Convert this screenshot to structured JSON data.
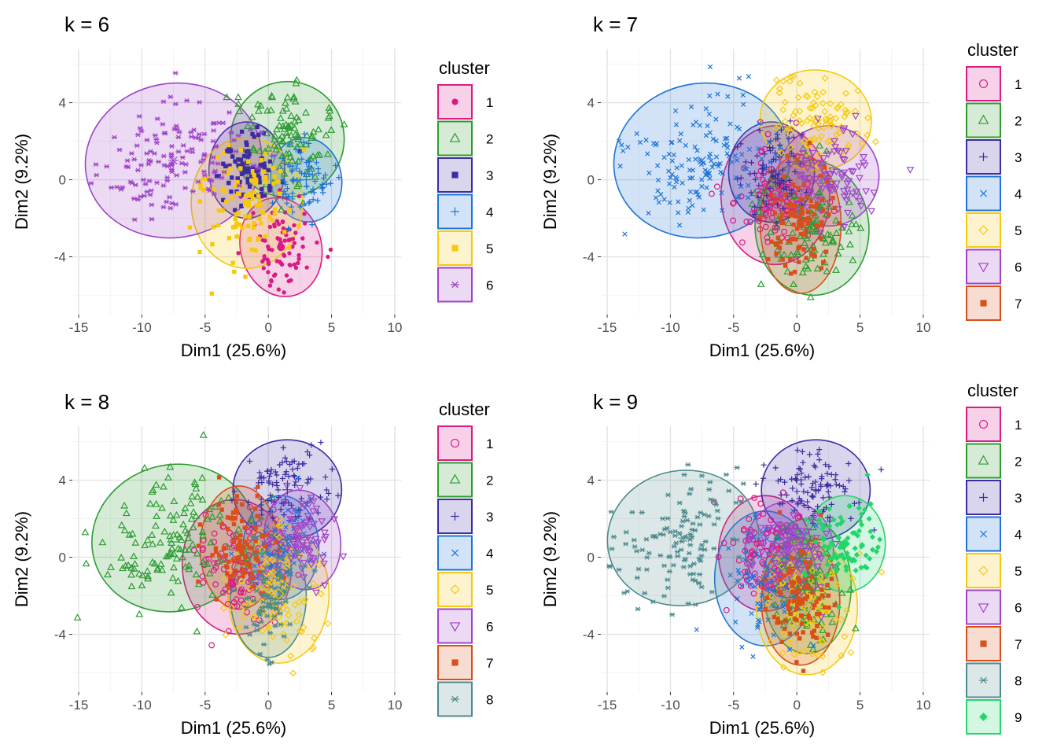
{
  "colors": {
    "1": "#D81B85",
    "2": "#2E9B32",
    "3": "#3D2CA0",
    "4": "#1E74D6",
    "5": "#F7C90E",
    "6": "#9E44C8",
    "7": "#D94E1B",
    "8": "#4E8A8E",
    "9": "#22D66C"
  },
  "chart_data": [
    {
      "type": "scatter",
      "title": "k = 6",
      "xlabel": "Dim1 (25.6%)",
      "ylabel": "Dim2 (9.2%)",
      "xlim": [
        -15.5,
        10.5
      ],
      "ylim": [
        -7,
        6.8
      ],
      "xticks": [
        -15,
        -10,
        -5,
        0,
        5,
        10
      ],
      "yticks": [
        -4,
        0,
        4
      ],
      "grid": true,
      "legend": {
        "title": "cluster",
        "position": "right",
        "labels": [
          "1",
          "2",
          "3",
          "4",
          "5",
          "6"
        ]
      },
      "clusters": [
        {
          "name": "1",
          "center": [
            1.0,
            -3.5
          ],
          "radii": [
            3.2,
            2.6
          ],
          "angle": 15,
          "shape": "dot"
        },
        {
          "name": "2",
          "center": [
            1.5,
            2.1
          ],
          "radii": [
            4.5,
            3.0
          ],
          "angle": -10,
          "shape": "triangle"
        },
        {
          "name": "3",
          "center": [
            -1.7,
            0.5
          ],
          "radii": [
            3.0,
            2.5
          ],
          "angle": 0,
          "shape": "square"
        },
        {
          "name": "4",
          "center": [
            3.0,
            0.0
          ],
          "radii": [
            2.8,
            2.2
          ],
          "angle": 10,
          "shape": "plus"
        },
        {
          "name": "5",
          "center": [
            -1.7,
            -1.2
          ],
          "radii": [
            4.4,
            3.4
          ],
          "angle": 0,
          "shape": "square"
        },
        {
          "name": "6",
          "center": [
            -7.5,
            1.0
          ],
          "radii": [
            7.0,
            4.0
          ],
          "angle": 10,
          "shape": "asterisk"
        }
      ]
    },
    {
      "type": "scatter",
      "title": "k = 7",
      "xlabel": "Dim1 (25.6%)",
      "ylabel": "Dim2 (9.2%)",
      "xlim": [
        -15.5,
        10.5
      ],
      "ylim": [
        -7,
        6.8
      ],
      "xticks": [
        -15,
        -10,
        -5,
        0,
        5,
        10
      ],
      "yticks": [
        -4,
        0,
        4
      ],
      "grid": true,
      "legend": {
        "title": "cluster",
        "position": "right",
        "labels": [
          "1",
          "2",
          "3",
          "4",
          "5",
          "6",
          "7"
        ]
      },
      "clusters": [
        {
          "name": "1",
          "center": [
            -1.7,
            -0.8
          ],
          "radii": [
            4.3,
            3.6
          ],
          "angle": 0,
          "shape": "circle"
        },
        {
          "name": "2",
          "center": [
            1.2,
            -2.5
          ],
          "radii": [
            4.5,
            3.5
          ],
          "angle": 5,
          "shape": "triangle"
        },
        {
          "name": "3",
          "center": [
            -2.0,
            0.4
          ],
          "radii": [
            3.4,
            2.6
          ],
          "angle": 0,
          "shape": "plus"
        },
        {
          "name": "4",
          "center": [
            -7.5,
            1.0
          ],
          "radii": [
            7.0,
            4.0
          ],
          "angle": 10,
          "shape": "cross"
        },
        {
          "name": "5",
          "center": [
            1.5,
            3.1
          ],
          "radii": [
            4.4,
            2.6
          ],
          "angle": -5,
          "shape": "diamond"
        },
        {
          "name": "6",
          "center": [
            2.5,
            0.2
          ],
          "radii": [
            4.0,
            2.6
          ],
          "angle": 5,
          "shape": "tridown"
        },
        {
          "name": "7",
          "center": [
            0.3,
            -2.3
          ],
          "radii": [
            3.2,
            3.6
          ],
          "angle": 0,
          "shape": "square"
        }
      ]
    },
    {
      "type": "scatter",
      "title": "k = 8",
      "xlabel": "Dim1 (25.6%)",
      "ylabel": "Dim2 (9.2%)",
      "xlim": [
        -15.5,
        10.5
      ],
      "ylim": [
        -7,
        6.8
      ],
      "xticks": [
        -15,
        -10,
        -5,
        0,
        5,
        10
      ],
      "yticks": [
        -4,
        0,
        4
      ],
      "grid": true,
      "legend": {
        "title": "cluster",
        "position": "right",
        "labels": [
          "1",
          "2",
          "3",
          "4",
          "5",
          "6",
          "7",
          "8"
        ]
      },
      "clusters": [
        {
          "name": "1",
          "center": [
            -2.5,
            -0.5
          ],
          "radii": [
            4.3,
            3.5
          ],
          "angle": 5,
          "shape": "circle"
        },
        {
          "name": "2",
          "center": [
            -7.5,
            1.0
          ],
          "radii": [
            6.5,
            3.8
          ],
          "angle": 15,
          "shape": "triangle"
        },
        {
          "name": "3",
          "center": [
            1.5,
            3.5
          ],
          "radii": [
            4.3,
            2.6
          ],
          "angle": 0,
          "shape": "plus"
        },
        {
          "name": "4",
          "center": [
            1.0,
            0.5
          ],
          "radii": [
            3.0,
            2.7
          ],
          "angle": 0,
          "shape": "cross"
        },
        {
          "name": "5",
          "center": [
            0.8,
            -1.9
          ],
          "radii": [
            4.0,
            3.6
          ],
          "angle": 0,
          "shape": "diamond"
        },
        {
          "name": "6",
          "center": [
            2.7,
            0.9
          ],
          "radii": [
            3.0,
            2.6
          ],
          "angle": 10,
          "shape": "tridown"
        },
        {
          "name": "7",
          "center": [
            -2.3,
            0.5
          ],
          "radii": [
            3.1,
            3.2
          ],
          "angle": 0,
          "shape": "square"
        },
        {
          "name": "8",
          "center": [
            0.0,
            -2.0
          ],
          "radii": [
            3.0,
            3.2
          ],
          "angle": 0,
          "shape": "asterisk"
        }
      ]
    },
    {
      "type": "scatter",
      "title": "k = 9",
      "xlabel": "Dim1 (25.6%)",
      "ylabel": "Dim2 (9.2%)",
      "xlim": [
        -15.5,
        10.5
      ],
      "ylim": [
        -7,
        6.8
      ],
      "xticks": [
        -15,
        -10,
        -5,
        0,
        5,
        10
      ],
      "yticks": [
        -4,
        0,
        4
      ],
      "grid": true,
      "legend": {
        "title": "cluster",
        "position": "right",
        "labels": [
          "1",
          "2",
          "3",
          "4",
          "5",
          "6",
          "7",
          "8",
          "9"
        ]
      },
      "clusters": [
        {
          "name": "1",
          "center": [
            -2.5,
            0.2
          ],
          "radii": [
            3.7,
            3.0
          ],
          "angle": 0,
          "shape": "circle"
        },
        {
          "name": "2",
          "center": [
            0.8,
            -1.5
          ],
          "radii": [
            3.5,
            3.5
          ],
          "angle": 0,
          "shape": "triangle"
        },
        {
          "name": "3",
          "center": [
            1.5,
            3.5
          ],
          "radii": [
            4.3,
            2.6
          ],
          "angle": 0,
          "shape": "plus"
        },
        {
          "name": "4",
          "center": [
            -2.5,
            -1.1
          ],
          "radii": [
            4.0,
            3.5
          ],
          "angle": 0,
          "shape": "cross"
        },
        {
          "name": "5",
          "center": [
            0.8,
            -2.6
          ],
          "radii": [
            4.0,
            3.5
          ],
          "angle": 0,
          "shape": "diamond"
        },
        {
          "name": "6",
          "center": [
            -0.6,
            0.4
          ],
          "radii": [
            3.5,
            2.5
          ],
          "angle": 0,
          "shape": "tridown"
        },
        {
          "name": "7",
          "center": [
            0.3,
            -2.3
          ],
          "radii": [
            3.1,
            3.3
          ],
          "angle": 0,
          "shape": "square"
        },
        {
          "name": "8",
          "center": [
            -9.0,
            1.0
          ],
          "radii": [
            6.0,
            3.5
          ],
          "angle": 10,
          "shape": "asterisk"
        },
        {
          "name": "9",
          "center": [
            3.8,
            0.7
          ],
          "radii": [
            3.2,
            2.5
          ],
          "angle": 0,
          "shape": "diamondfill"
        }
      ]
    }
  ]
}
